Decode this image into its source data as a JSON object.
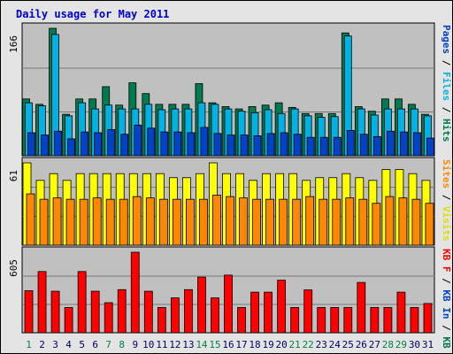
{
  "chart_data": {
    "title": "Daily usage for May 2011",
    "categories": [
      "1",
      "2",
      "3",
      "4",
      "5",
      "6",
      "7",
      "8",
      "9",
      "10",
      "11",
      "12",
      "13",
      "14",
      "15",
      "16",
      "17",
      "18",
      "19",
      "20",
      "21",
      "22",
      "23",
      "24",
      "25",
      "26",
      "27",
      "28",
      "29",
      "30",
      "31"
    ],
    "weekend_days": [
      1,
      7,
      8,
      14,
      15,
      21,
      22,
      28,
      29
    ],
    "colors": {
      "hits": "#007a4f",
      "files": "#00b2e4",
      "pages": "#0042c8",
      "visits": "#ffff00",
      "sites": "#ff8800",
      "kb_in": "#ff0000",
      "weekday_label": "#000066",
      "weekend_label": "#00804a",
      "panel_bg": "#c0c0c0",
      "outer_bg": "#e4e4e4",
      "title": "#0000cc"
    },
    "panels": [
      {
        "name": "hits_files_pages",
        "type": "bar",
        "max_label": "166",
        "ymax": 166,
        "right_label": [
          {
            "text": "Pages",
            "color": "#0042c8"
          },
          {
            "text": " / ",
            "color": "#000000"
          },
          {
            "text": "Files",
            "color": "#00b2e4"
          },
          {
            "text": " / ",
            "color": "#000000"
          },
          {
            "text": "Hits",
            "color": "#007a4f"
          }
        ],
        "series": [
          {
            "name": "Hits",
            "color": "#007a4f",
            "values": [
              74,
              67,
              166,
              54,
              74,
              74,
              90,
              66,
              95,
              81,
              67,
              67,
              67,
              94,
              69,
              64,
              61,
              64,
              66,
              69,
              63,
              55,
              55,
              55,
              160,
              64,
              58,
              74,
              74,
              67,
              54
            ]
          },
          {
            "name": "Files",
            "color": "#00b2e4",
            "values": [
              69,
              65,
              158,
              52,
              69,
              61,
              66,
              61,
              61,
              67,
              60,
              61,
              61,
              69,
              67,
              61,
              58,
              56,
              60,
              55,
              61,
              52,
              50,
              51,
              156,
              61,
              53,
              61,
              61,
              61,
              52
            ]
          },
          {
            "name": "Pages",
            "color": "#0042c8",
            "values": [
              30,
              27,
              32,
              22,
              31,
              30,
              34,
              28,
              40,
              36,
              31,
              31,
              30,
              37,
              29,
              27,
              27,
              26,
              29,
              30,
              28,
              24,
              24,
              24,
              33,
              28,
              25,
              32,
              31,
              30,
              23
            ]
          }
        ]
      },
      {
        "name": "visits_sites",
        "type": "bar",
        "max_label": "61",
        "ymax": 61,
        "right_label": [
          {
            "text": "Sites",
            "color": "#ff8800"
          },
          {
            "text": " / ",
            "color": "#000000"
          },
          {
            "text": "Visits",
            "color": "#dddd00"
          }
        ],
        "series": [
          {
            "name": "Visits",
            "color": "#ffff00",
            "values": [
              61,
              48,
              53,
              48,
              53,
              53,
              53,
              53,
              53,
              53,
              53,
              50,
              50,
              53,
              61,
              53,
              53,
              48,
              53,
              53,
              53,
              48,
              50,
              50,
              53,
              50,
              48,
              56,
              56,
              53,
              48
            ]
          },
          {
            "name": "Sites",
            "color": "#ff8800",
            "values": [
              38,
              34,
              35,
              34,
              34,
              35,
              34,
              34,
              36,
              35,
              34,
              34,
              34,
              34,
              37,
              36,
              35,
              34,
              34,
              34,
              34,
              36,
              34,
              34,
              35,
              34,
              31,
              36,
              35,
              34,
              31
            ]
          }
        ]
      },
      {
        "name": "kb",
        "type": "bar",
        "max_label": "605",
        "ymax": 605,
        "right_label": [
          {
            "text": "KB F",
            "color": "#ff0000"
          },
          {
            "text": " / ",
            "color": "#000000"
          },
          {
            "text": "KB In",
            "color": "#0042c8"
          },
          {
            "text": " / ",
            "color": "#000000"
          },
          {
            "text": "KB Out",
            "color": "#007a4f"
          }
        ],
        "series": [
          {
            "name": "KB F",
            "color": "#ff0000",
            "values": [
              316,
              460,
              312,
              190,
              460,
              312,
              226,
              324,
              605,
              312,
              190,
              262,
              324,
              418,
              262,
              433,
              190,
              305,
              305,
              395,
              190,
              322,
              190,
              190,
              190,
              378,
              190,
              190,
              305,
              190,
              220
            ]
          }
        ]
      }
    ]
  }
}
